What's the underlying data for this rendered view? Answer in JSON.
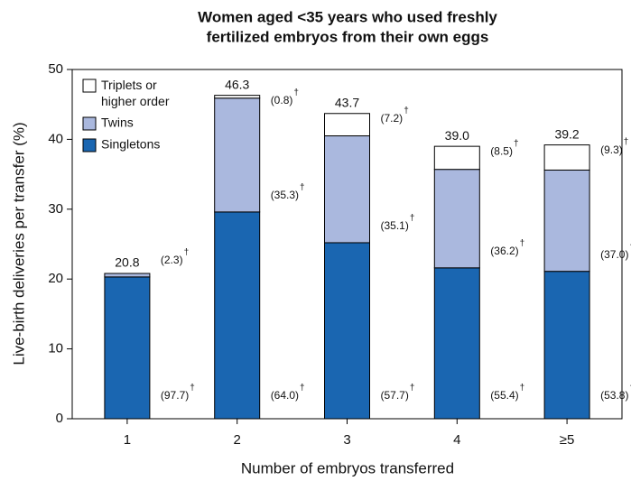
{
  "chart_data": {
    "type": "stacked_bar",
    "title": [
      "Women aged <35 years who used freshly",
      "fertilized embryos from their own eggs"
    ],
    "xlabel": "Number of embryos transferred",
    "ylabel": "Live-birth deliveries per transfer (%)",
    "categories": [
      "1",
      "2",
      "3",
      "4",
      "≥5"
    ],
    "series": [
      {
        "name": "Singletons",
        "color": "#1a66b1",
        "values": [
          20.3,
          29.6,
          25.2,
          21.6,
          21.1
        ],
        "share_labels": [
          "(97.7)",
          "(64.0)",
          "(57.7)",
          "(55.4)",
          "(53.8)"
        ]
      },
      {
        "name": "Twins",
        "color": "#aab8de",
        "values": [
          0.5,
          16.3,
          15.3,
          14.1,
          14.5
        ],
        "share_labels": [
          "(2.3)",
          "(35.3)",
          "(35.1)",
          "(36.2)",
          "(37.0)"
        ]
      },
      {
        "name": "Triplets or higher order",
        "color": "#ffffff",
        "values": [
          null,
          0.4,
          3.2,
          3.3,
          3.6
        ],
        "share_labels": [
          null,
          "(0.8)",
          "(7.2)",
          "(8.5)",
          "(9.3)"
        ]
      }
    ],
    "totals": [
      20.8,
      46.3,
      43.7,
      39.0,
      39.2
    ],
    "total_labels": [
      "20.8",
      "46.3",
      "43.7",
      "39.0",
      "39.2"
    ],
    "footnote_mark": "†",
    "ylim": [
      0,
      50
    ],
    "yticks": [
      0,
      10,
      20,
      30,
      40,
      50
    ],
    "legend": "upper left"
  }
}
